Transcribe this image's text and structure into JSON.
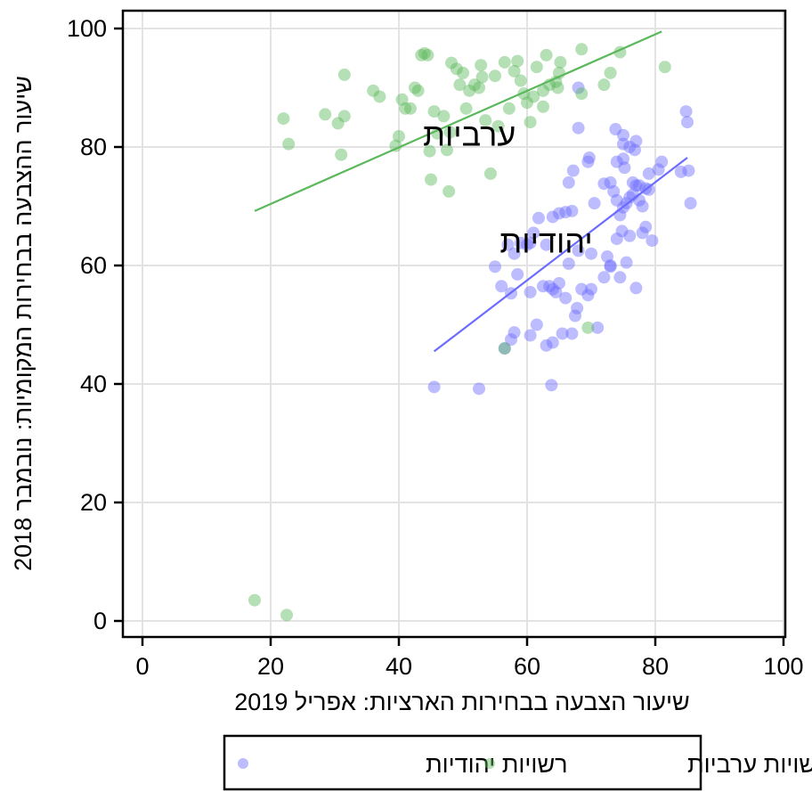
{
  "chart_data": {
    "type": "scatter",
    "xlabel": "שיעור הצבעה בבחירות הארציות: אפריל 2019",
    "ylabel": "שיעור ההצבעה בבחירות המקומיות: נובמבר 2018",
    "xlim": [
      0,
      100
    ],
    "ylim": [
      0,
      100
    ],
    "xticks": [
      0,
      20,
      40,
      60,
      80,
      100
    ],
    "yticks": [
      0,
      20,
      40,
      60,
      80,
      100
    ],
    "xtick_labels": [
      "0",
      "20",
      "40",
      "60",
      "80",
      "100"
    ],
    "ytick_labels": [
      "0",
      "20",
      "40",
      "60",
      "80",
      "100"
    ],
    "grid": true,
    "legend_position": "bottom",
    "annotations": [
      {
        "text": "ערביות",
        "x": 51,
        "y": 82
      },
      {
        "text": "יהודיות",
        "x": 63,
        "y": 64
      }
    ],
    "series": [
      {
        "name": "רשויות יהודיות",
        "color": "#6b6bff",
        "points": [
          [
            45.5,
            39.5
          ],
          [
            52.5,
            39.2
          ],
          [
            63.8,
            39.8
          ],
          [
            56.5,
            46
          ],
          [
            57.5,
            47.5
          ],
          [
            63,
            46.5
          ],
          [
            64,
            47
          ],
          [
            65.5,
            48.5
          ],
          [
            67,
            48.5
          ],
          [
            58,
            48.7
          ],
          [
            60.5,
            48.2
          ],
          [
            61.5,
            50
          ],
          [
            71,
            49.5
          ],
          [
            67.5,
            51.5
          ],
          [
            67.8,
            52.8
          ],
          [
            69.5,
            55
          ],
          [
            68.5,
            56
          ],
          [
            70,
            56
          ],
          [
            77,
            56.2
          ],
          [
            57.5,
            55.3
          ],
          [
            58.5,
            58.5
          ],
          [
            60.5,
            55.5
          ],
          [
            62.5,
            56.5
          ],
          [
            63.5,
            56.5
          ],
          [
            64.5,
            55.5
          ],
          [
            65,
            57
          ],
          [
            66,
            54.5
          ],
          [
            64,
            56
          ],
          [
            72,
            58
          ],
          [
            73,
            59.8
          ],
          [
            74.5,
            58
          ],
          [
            75.5,
            60.5
          ],
          [
            55,
            59.8
          ],
          [
            56,
            56.5
          ],
          [
            57,
            63.5
          ],
          [
            58,
            62
          ],
          [
            59,
            63.8
          ],
          [
            60,
            63.5
          ],
          [
            60.5,
            63.8
          ],
          [
            61,
            65.5
          ],
          [
            61.8,
            68
          ],
          [
            63,
            63.5
          ],
          [
            64,
            68.2
          ],
          [
            65,
            68.8
          ],
          [
            66,
            69
          ],
          [
            67,
            69.2
          ],
          [
            66.5,
            60.3
          ],
          [
            68,
            62.5
          ],
          [
            70,
            62
          ],
          [
            72.5,
            61.5
          ],
          [
            73,
            60
          ],
          [
            74,
            64.5
          ],
          [
            74.8,
            65.8
          ],
          [
            76,
            65
          ],
          [
            78,
            65.5
          ],
          [
            79.5,
            64.2
          ],
          [
            78.5,
            66.5
          ],
          [
            70.5,
            70.5
          ],
          [
            72,
            73.8
          ],
          [
            73,
            74
          ],
          [
            73.5,
            72.5
          ],
          [
            74,
            71
          ],
          [
            74.5,
            68.5
          ],
          [
            75,
            69.8
          ],
          [
            75.5,
            70.5
          ],
          [
            76,
            71.5
          ],
          [
            76.5,
            72
          ],
          [
            77,
            73.5
          ],
          [
            77.5,
            71
          ],
          [
            78,
            70
          ],
          [
            78.5,
            73
          ],
          [
            79,
            72.8
          ],
          [
            76.5,
            74
          ],
          [
            77.5,
            73.5
          ],
          [
            66.5,
            74
          ],
          [
            67.2,
            76
          ],
          [
            69.5,
            77.5
          ],
          [
            69.7,
            78.2
          ],
          [
            74,
            77.5
          ],
          [
            75,
            78
          ],
          [
            75.2,
            76.5
          ],
          [
            76,
            80
          ],
          [
            76.8,
            79.5
          ],
          [
            77,
            81
          ],
          [
            79,
            75.5
          ],
          [
            80.5,
            76.2
          ],
          [
            75,
            80.5
          ],
          [
            73.8,
            83
          ],
          [
            75,
            82
          ],
          [
            81,
            77.5
          ],
          [
            84,
            75.8
          ],
          [
            85.2,
            76
          ],
          [
            85.5,
            70.5
          ],
          [
            84.8,
            86
          ],
          [
            85,
            84.2
          ],
          [
            68,
            90
          ],
          [
            68,
            83.2
          ]
        ]
      },
      {
        "name": "רשויות ערביות",
        "color": "#5cb85c",
        "points": [
          [
            17.5,
            3.5
          ],
          [
            22.5,
            1
          ],
          [
            22,
            84.8
          ],
          [
            22.8,
            80.5
          ],
          [
            28.5,
            85.5
          ],
          [
            30.5,
            84
          ],
          [
            31,
            78.7
          ],
          [
            31.5,
            85.2
          ],
          [
            31.5,
            92.2
          ],
          [
            36,
            89.5
          ],
          [
            37,
            88.5
          ],
          [
            39.5,
            80.2
          ],
          [
            40,
            81.8
          ],
          [
            40.5,
            88
          ],
          [
            41,
            86.5
          ],
          [
            41.8,
            86.5
          ],
          [
            42.5,
            90
          ],
          [
            43,
            89.5
          ],
          [
            43.5,
            95.5
          ],
          [
            44,
            95.8
          ],
          [
            44.5,
            95.5
          ],
          [
            44.8,
            79.3
          ],
          [
            45,
            74.5
          ],
          [
            45.5,
            86
          ],
          [
            46,
            82.3
          ],
          [
            47,
            85.2
          ],
          [
            47.5,
            79.5
          ],
          [
            47.8,
            72.5
          ],
          [
            48,
            82.5
          ],
          [
            48.2,
            94.2
          ],
          [
            49,
            93.2
          ],
          [
            49.5,
            90.5
          ],
          [
            50,
            92.5
          ],
          [
            50.5,
            86.5
          ],
          [
            51,
            89.5
          ],
          [
            51.8,
            90.5
          ],
          [
            52.5,
            90
          ],
          [
            53,
            91.8
          ],
          [
            52.8,
            93.8
          ],
          [
            53.5,
            84.5
          ],
          [
            54.3,
            75.5
          ],
          [
            55,
            92
          ],
          [
            55.5,
            83.5
          ],
          [
            56.5,
            94.3
          ],
          [
            57.2,
            86.5
          ],
          [
            58,
            92.8
          ],
          [
            58.5,
            94.5
          ],
          [
            59,
            91.2
          ],
          [
            59.5,
            89
          ],
          [
            60.5,
            84.2
          ],
          [
            60,
            87.5
          ],
          [
            61,
            88.5
          ],
          [
            61.5,
            93.5
          ],
          [
            62.5,
            89.5
          ],
          [
            62.5,
            86.8
          ],
          [
            63,
            95.5
          ],
          [
            63.5,
            90.5
          ],
          [
            64.5,
            91
          ],
          [
            64.8,
            90
          ],
          [
            65,
            92.5
          ],
          [
            65.2,
            94.3
          ],
          [
            68.5,
            96.5
          ],
          [
            68.5,
            89
          ],
          [
            72,
            90.5
          ],
          [
            73,
            92.5
          ],
          [
            74.5,
            96
          ],
          [
            81.5,
            93.5
          ],
          [
            56.5,
            46
          ],
          [
            69.5,
            49.5
          ]
        ]
      }
    ],
    "fit_lines": [
      {
        "series": "רשויות ערביות",
        "color": "#5cb85c",
        "x1": 17.5,
        "y1": 69.2,
        "x2": 81,
        "y2": 99.5
      },
      {
        "series": "רשויות יהודיות",
        "color": "#6b6bff",
        "x1": 45.5,
        "y1": 45.5,
        "x2": 85,
        "y2": 78.2
      }
    ]
  }
}
